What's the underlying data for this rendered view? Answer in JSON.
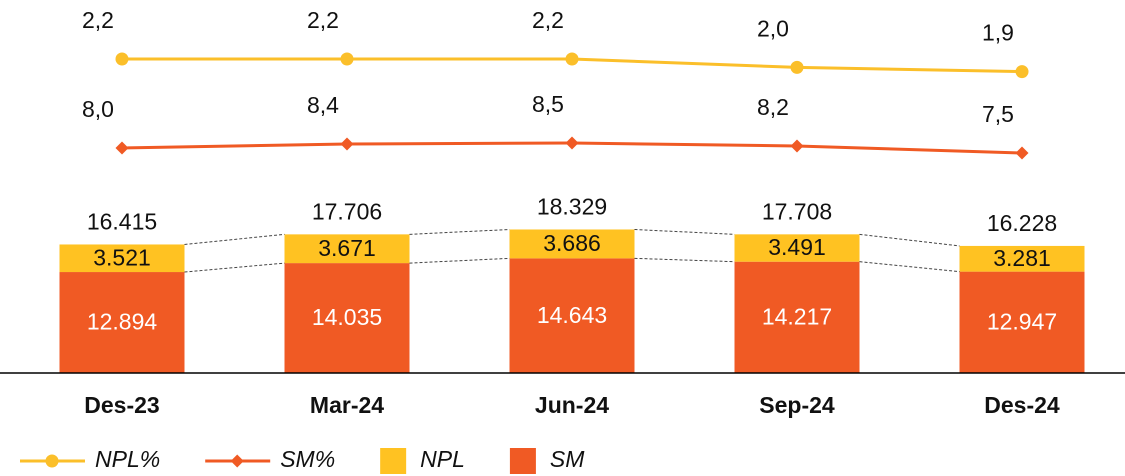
{
  "chart_data": {
    "type": "bar",
    "categories": [
      "Des-23",
      "Mar-24",
      "Jun-24",
      "Sep-24",
      "Des-24"
    ],
    "series": [
      {
        "name": "NPL%",
        "type": "line",
        "marker": "circle",
        "color": "#FBBF2A",
        "values": [
          2.2,
          2.2,
          2.2,
          2.0,
          1.9
        ],
        "value_labels": [
          "2,2",
          "2,2",
          "2,2",
          "2,0",
          "1,9"
        ]
      },
      {
        "name": "SM%",
        "type": "line",
        "marker": "diamond",
        "color": "#F05A24",
        "values": [
          8.0,
          8.4,
          8.5,
          8.2,
          7.5
        ],
        "value_labels": [
          "8,0",
          "8,4",
          "8,5",
          "8,2",
          "7,5"
        ]
      },
      {
        "name": "NPL",
        "type": "bar",
        "color": "#FFC222",
        "values": [
          3521,
          3671,
          3686,
          3491,
          3281
        ],
        "value_labels": [
          "3.521",
          "3.671",
          "3.686",
          "3.491",
          "3.281"
        ]
      },
      {
        "name": "SM",
        "type": "bar",
        "color": "#F05A24",
        "values": [
          12894,
          14035,
          14643,
          14217,
          12947
        ],
        "value_labels": [
          "12.894",
          "14.035",
          "14.643",
          "14.217",
          "12.947"
        ]
      }
    ],
    "total_labels": [
      "16.415",
      "17.706",
      "18.329",
      "17.708",
      "16.228"
    ]
  }
}
